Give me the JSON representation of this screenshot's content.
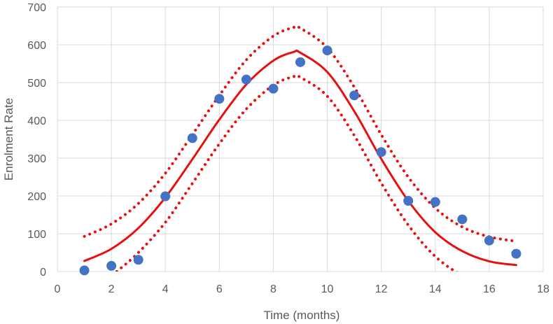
{
  "chart_data": {
    "type": "scatter",
    "title": "",
    "xlabel": "Time (months)",
    "ylabel": "Enrolment Rate",
    "xlim": [
      0,
      18
    ],
    "ylim": [
      0,
      700
    ],
    "xticks": [
      0,
      2,
      4,
      6,
      8,
      10,
      12,
      14,
      16,
      18
    ],
    "yticks": [
      0,
      100,
      200,
      300,
      400,
      500,
      600,
      700
    ],
    "grid": true,
    "legend": "none",
    "colors": {
      "points": "#4472C4",
      "fit": "#E8100F",
      "grid": "#d9d9d9",
      "text": "#595959"
    },
    "series": [
      {
        "kind": "scatter",
        "x": [
          1,
          2,
          3,
          4,
          5,
          6,
          7,
          8,
          9,
          10,
          11,
          12,
          13,
          14,
          15,
          16,
          17
        ],
        "y": [
          3,
          15,
          31,
          199,
          353,
          457,
          508,
          484,
          554,
          585,
          466,
          316,
          187,
          184,
          138,
          82,
          47
        ]
      },
      {
        "kind": "line",
        "style": "solid",
        "x": [
          1,
          2,
          3,
          4,
          5,
          6,
          7,
          8,
          8.75,
          9,
          10,
          11,
          12,
          13,
          14,
          15,
          16,
          17
        ],
        "y": [
          28,
          60,
          115,
          196,
          297,
          402,
          495,
          558,
          581,
          579,
          528,
          424,
          298,
          187,
          104,
          54,
          27,
          17
        ]
      },
      {
        "kind": "line",
        "style": "dotted",
        "x": [
          1,
          2,
          3,
          4,
          5,
          6,
          7,
          8,
          8.75,
          9,
          10,
          11,
          12,
          13,
          14,
          15,
          16,
          17
        ],
        "y": [
          93,
          126,
          180,
          260,
          362,
          466,
          560,
          623,
          646,
          644,
          592,
          488,
          362,
          250,
          168,
          118,
          92,
          80
        ]
      },
      {
        "kind": "line",
        "style": "dotted",
        "x": [
          2.2,
          3,
          4,
          5,
          6,
          7,
          8,
          8.75,
          9,
          10,
          11,
          12,
          13,
          14,
          15,
          15.5
        ],
        "y": [
          0,
          50,
          130,
          233,
          338,
          430,
          493,
          516,
          514,
          464,
          360,
          234,
          123,
          40,
          -10,
          -12
        ]
      }
    ]
  }
}
